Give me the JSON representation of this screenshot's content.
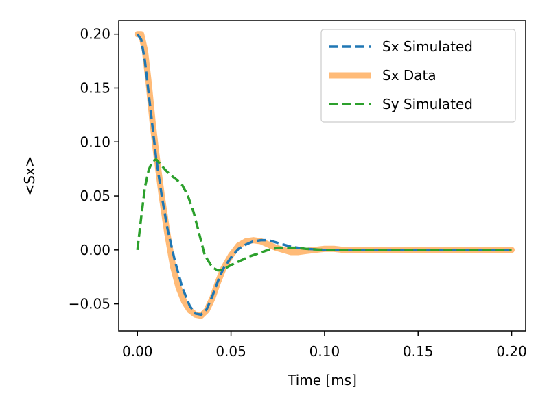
{
  "chart_data": {
    "type": "line",
    "xlabel": "Time [ms]",
    "ylabel": "<Sx>",
    "xlim": [
      -0.01,
      0.2075
    ],
    "ylim": [
      -0.075,
      0.2125
    ],
    "xticks": [
      0.0,
      0.05,
      0.1,
      0.15,
      0.2
    ],
    "xtick_labels": [
      "0.00",
      "0.05",
      "0.10",
      "0.15",
      "0.20"
    ],
    "yticks": [
      -0.05,
      0.0,
      0.05,
      0.1,
      0.15,
      0.2
    ],
    "ytick_labels": [
      "−0.05",
      "0.00",
      "0.05",
      "0.10",
      "0.15",
      "0.20"
    ],
    "grid": false,
    "legend_position": "top-right",
    "series": [
      {
        "name": "Sx Simulated",
        "color": "#1f77b4",
        "style": "dashed",
        "x": [
          0.0,
          0.002,
          0.004,
          0.006,
          0.008,
          0.01,
          0.013,
          0.016,
          0.02,
          0.024,
          0.028,
          0.031,
          0.034,
          0.037,
          0.04,
          0.043,
          0.046,
          0.05,
          0.054,
          0.058,
          0.062,
          0.066,
          0.07,
          0.074,
          0.078,
          0.082,
          0.086,
          0.09,
          0.1,
          0.11,
          0.12,
          0.13,
          0.14,
          0.15,
          0.16,
          0.17,
          0.18,
          0.19,
          0.2
        ],
        "y": [
          0.2,
          0.195,
          0.175,
          0.145,
          0.115,
          0.085,
          0.05,
          0.02,
          -0.01,
          -0.035,
          -0.052,
          -0.059,
          -0.06,
          -0.055,
          -0.043,
          -0.029,
          -0.017,
          -0.007,
          0.001,
          0.005,
          0.008,
          0.009,
          0.009,
          0.007,
          0.005,
          0.003,
          0.002,
          0.001,
          0.0,
          0.0,
          0.0,
          0.0,
          0.0,
          0.0,
          0.0,
          0.0,
          0.0,
          0.0,
          0.0
        ]
      },
      {
        "name": "Sx Data",
        "color": "#ffbb78",
        "style": "solid",
        "x": [
          0.0,
          0.002,
          0.004,
          0.006,
          0.008,
          0.01,
          0.013,
          0.016,
          0.019,
          0.022,
          0.025,
          0.028,
          0.031,
          0.034,
          0.037,
          0.04,
          0.043,
          0.046,
          0.05,
          0.054,
          0.058,
          0.062,
          0.066,
          0.07,
          0.074,
          0.078,
          0.082,
          0.086,
          0.09,
          0.095,
          0.1,
          0.105,
          0.11,
          0.12,
          0.13,
          0.14,
          0.15,
          0.16,
          0.17,
          0.18,
          0.19,
          0.2
        ],
        "y": [
          0.2,
          0.2,
          0.185,
          0.155,
          0.12,
          0.09,
          0.05,
          0.015,
          -0.015,
          -0.035,
          -0.048,
          -0.056,
          -0.06,
          -0.061,
          -0.056,
          -0.045,
          -0.03,
          -0.017,
          -0.005,
          0.004,
          0.008,
          0.009,
          0.008,
          0.005,
          0.002,
          0.0,
          -0.002,
          -0.002,
          -0.001,
          0.0,
          0.001,
          0.001,
          0.0,
          0.0,
          0.0,
          0.0,
          0.0,
          0.0,
          0.0,
          0.0,
          0.0,
          0.0
        ]
      },
      {
        "name": "Sy Simulated",
        "color": "#2ca02c",
        "style": "dashed",
        "x": [
          0.0,
          0.002,
          0.004,
          0.006,
          0.008,
          0.01,
          0.012,
          0.015,
          0.018,
          0.021,
          0.024,
          0.027,
          0.03,
          0.033,
          0.036,
          0.04,
          0.043,
          0.046,
          0.05,
          0.055,
          0.06,
          0.065,
          0.07,
          0.075,
          0.08,
          0.085,
          0.09,
          0.1,
          0.11,
          0.12,
          0.13,
          0.14,
          0.15,
          0.16,
          0.17,
          0.18,
          0.19,
          0.2
        ],
        "y": [
          0.0,
          0.03,
          0.058,
          0.074,
          0.082,
          0.084,
          0.08,
          0.074,
          0.069,
          0.065,
          0.06,
          0.05,
          0.035,
          0.015,
          -0.005,
          -0.016,
          -0.019,
          -0.018,
          -0.014,
          -0.01,
          -0.006,
          -0.003,
          0.0,
          0.002,
          0.002,
          0.002,
          0.001,
          0.0,
          0.0,
          0.0,
          0.0,
          0.0,
          0.0,
          0.0,
          0.0,
          0.0,
          0.0,
          0.0
        ]
      }
    ]
  }
}
